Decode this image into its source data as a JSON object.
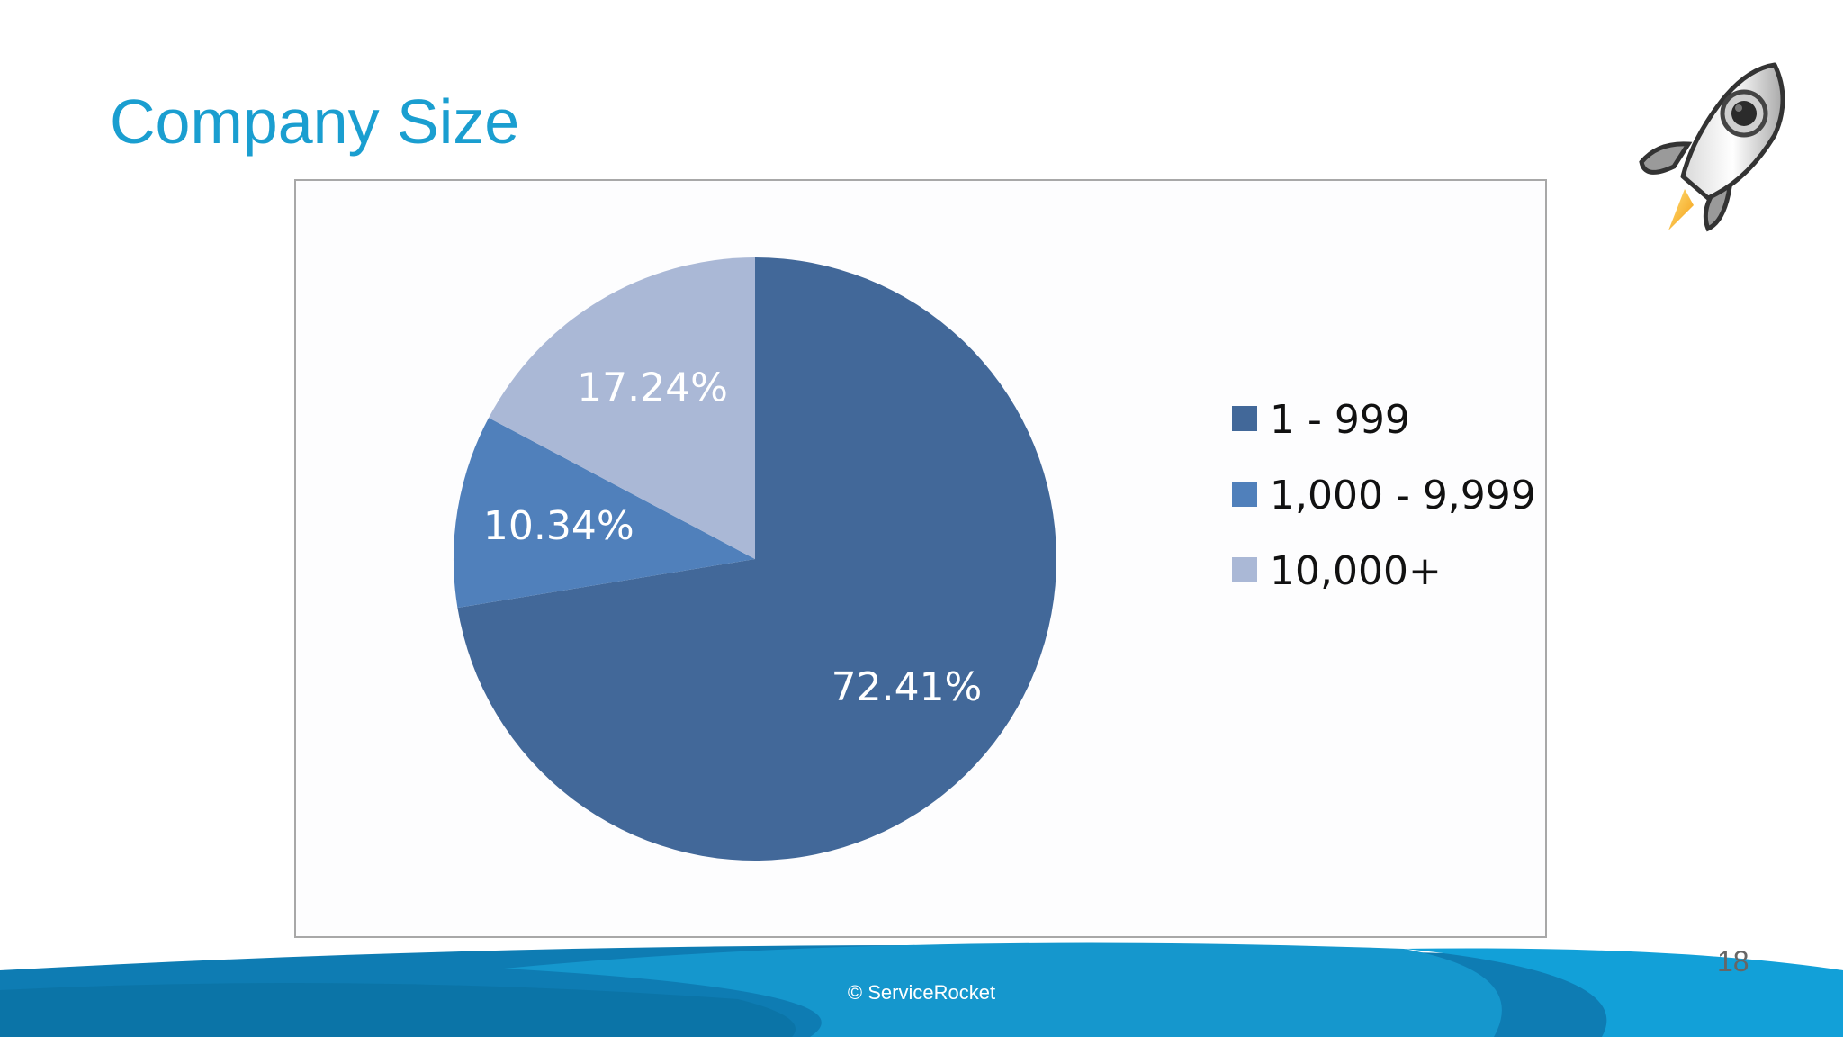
{
  "slide": {
    "title": "Company Size",
    "page_number": "18",
    "copyright": "© ServiceRocket",
    "logo_icon": "rocket-icon",
    "colors": {
      "title": "#1a9ed0",
      "footer_wave_dark": "#0b72a6",
      "footer_wave_light": "#1a9ed0"
    }
  },
  "chart_data": {
    "type": "pie",
    "title": "",
    "categories": [
      "1 - 999",
      "1,000 - 9,999",
      "10,000+"
    ],
    "values": [
      72.41,
      10.34,
      17.24
    ],
    "labels": [
      "72.41%",
      "10.34%",
      "17.24%"
    ],
    "colors": [
      "#426899",
      "#5080bb",
      "#aab8d6"
    ],
    "start": "12 o'clock, clockwise",
    "legend": "right"
  }
}
